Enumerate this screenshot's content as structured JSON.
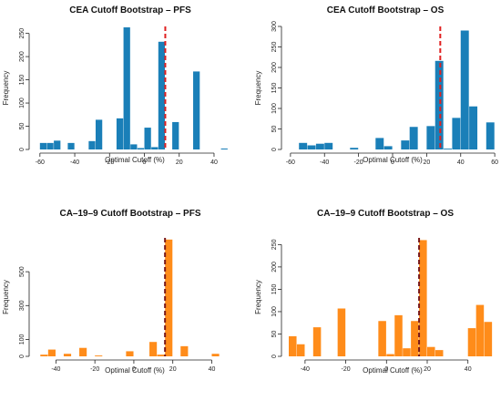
{
  "chart_data": [
    {
      "type": "bar",
      "title": "CEA Cutoff Bootstrap – PFS",
      "xlabel": "Optimal Cutoff (%)",
      "ylabel": "Frequency",
      "color": "#1a7fb8",
      "cutoff_color": "#e02020",
      "xlim": [
        -62,
        51
      ],
      "ylim": [
        0,
        265
      ],
      "xticks": [
        -60,
        -40,
        -20,
        0,
        20,
        40
      ],
      "yticks": [
        0,
        50,
        100,
        150,
        200,
        250
      ],
      "bin_width": 4,
      "bins": [
        {
          "x": -58,
          "y": 14
        },
        {
          "x": -54,
          "y": 14
        },
        {
          "x": -50,
          "y": 19
        },
        {
          "x": -42,
          "y": 14
        },
        {
          "x": -30,
          "y": 18
        },
        {
          "x": -26,
          "y": 64
        },
        {
          "x": -14,
          "y": 67
        },
        {
          "x": -10,
          "y": 263
        },
        {
          "x": -6,
          "y": 11
        },
        {
          "x": -2,
          "y": 3
        },
        {
          "x": 2,
          "y": 47
        },
        {
          "x": 6,
          "y": 5
        },
        {
          "x": 10,
          "y": 232
        },
        {
          "x": 18,
          "y": 59
        },
        {
          "x": 30,
          "y": 168
        },
        {
          "x": 46,
          "y": 2
        }
      ],
      "cutoff": 12
    },
    {
      "type": "bar",
      "title": "CEA Cutoff Bootstrap – OS",
      "xlabel": "Optimal Cutoff (%)",
      "ylabel": "Frequency",
      "color": "#1a7fb8",
      "cutoff_color": "#e02020",
      "xlim": [
        -61,
        61
      ],
      "ylim": [
        0,
        300
      ],
      "xticks": [
        -60,
        -40,
        -20,
        0,
        20,
        40,
        60
      ],
      "yticks": [
        0,
        50,
        100,
        150,
        200,
        250,
        300
      ],
      "bin_width": 5,
      "bins": [
        {
          "x": -52.5,
          "y": 16
        },
        {
          "x": -47.5,
          "y": 10
        },
        {
          "x": -42.5,
          "y": 14
        },
        {
          "x": -37.5,
          "y": 16
        },
        {
          "x": -22.5,
          "y": 4
        },
        {
          "x": -7.5,
          "y": 28
        },
        {
          "x": -2.5,
          "y": 8
        },
        {
          "x": 7.5,
          "y": 22
        },
        {
          "x": 12.5,
          "y": 55
        },
        {
          "x": 22.5,
          "y": 57
        },
        {
          "x": 27.5,
          "y": 216
        },
        {
          "x": 32.5,
          "y": 2
        },
        {
          "x": 37.5,
          "y": 77
        },
        {
          "x": 42.5,
          "y": 290
        },
        {
          "x": 47.5,
          "y": 105
        },
        {
          "x": 57.5,
          "y": 66
        }
      ],
      "cutoff": 28
    },
    {
      "type": "bar",
      "title": "CA–19–9 Cutoff Bootstrap – PFS",
      "xlabel": "Optimal Cutoff (%)",
      "ylabel": "Frequency",
      "color": "#ff8c1a",
      "cutoff_color": "#7a1a1a",
      "xlim": [
        -50,
        51
      ],
      "ylim": [
        0,
        700
      ],
      "xticks": [
        -40,
        -20,
        0,
        20,
        40
      ],
      "yticks": [
        0,
        100,
        300,
        500
      ],
      "bin_width": 4,
      "bins": [
        {
          "x": -46,
          "y": 10
        },
        {
          "x": -42,
          "y": 40
        },
        {
          "x": -34,
          "y": 15
        },
        {
          "x": -26,
          "y": 50
        },
        {
          "x": -18,
          "y": 5
        },
        {
          "x": -2,
          "y": 30
        },
        {
          "x": 10,
          "y": 85
        },
        {
          "x": 14,
          "y": 10
        },
        {
          "x": 18,
          "y": 690
        },
        {
          "x": 26,
          "y": 60
        },
        {
          "x": 42,
          "y": 15
        }
      ],
      "cutoff": 16
    },
    {
      "type": "bar",
      "title": "CA–19–9 Cutoff Bootstrap – OS",
      "xlabel": "Optimal Cutoff (%)",
      "ylabel": "Frequency",
      "color": "#ff8c1a",
      "cutoff_color": "#7a1a1a",
      "xlim": [
        -48,
        54
      ],
      "ylim": [
        0,
        265
      ],
      "xticks": [
        -40,
        -20,
        0,
        20,
        40
      ],
      "yticks": [
        0,
        50,
        100,
        150,
        200,
        250
      ],
      "bin_width": 4,
      "bins": [
        {
          "x": -46,
          "y": 45
        },
        {
          "x": -42,
          "y": 27
        },
        {
          "x": -34,
          "y": 65
        },
        {
          "x": -22,
          "y": 107
        },
        {
          "x": -2,
          "y": 79
        },
        {
          "x": 2,
          "y": 5
        },
        {
          "x": 6,
          "y": 92
        },
        {
          "x": 10,
          "y": 18
        },
        {
          "x": 14,
          "y": 79
        },
        {
          "x": 18,
          "y": 260
        },
        {
          "x": 22,
          "y": 21
        },
        {
          "x": 26,
          "y": 14
        },
        {
          "x": 42,
          "y": 63
        },
        {
          "x": 46,
          "y": 115
        },
        {
          "x": 50,
          "y": 77
        }
      ],
      "cutoff": 16
    }
  ]
}
